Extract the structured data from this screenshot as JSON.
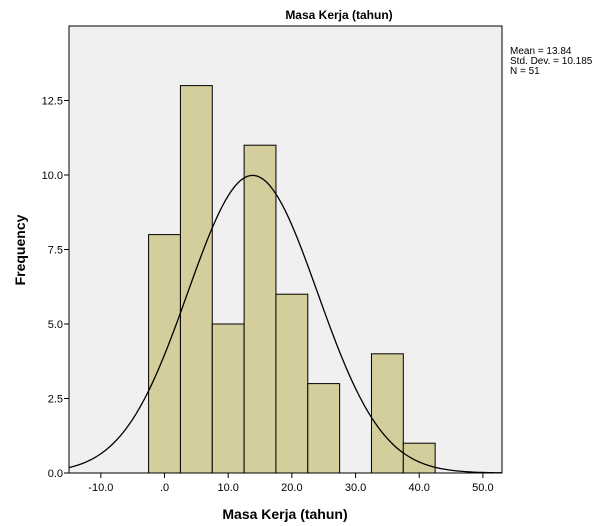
{
  "chart_data": {
    "type": "bar",
    "subtype": "histogram",
    "title": "Masa Kerja (tahun)",
    "xlabel": "Masa Kerja (tahun)",
    "ylabel": "Frequency",
    "bin_width": 5,
    "bins": [
      {
        "start": -2.5,
        "end": 2.5,
        "value": 8
      },
      {
        "start": 2.5,
        "end": 7.5,
        "value": 13
      },
      {
        "start": 7.5,
        "end": 12.5,
        "value": 5
      },
      {
        "start": 12.5,
        "end": 17.5,
        "value": 11
      },
      {
        "start": 17.5,
        "end": 22.5,
        "value": 6
      },
      {
        "start": 22.5,
        "end": 27.5,
        "value": 3
      },
      {
        "start": 27.5,
        "end": 32.5,
        "value": 0
      },
      {
        "start": 32.5,
        "end": 37.5,
        "value": 4
      },
      {
        "start": 37.5,
        "end": 42.5,
        "value": 1
      }
    ],
    "xlim": [
      -15,
      53
    ],
    "ylim": [
      0,
      15
    ],
    "x_ticks": [
      -10,
      0,
      10,
      20,
      30,
      40,
      50
    ],
    "x_tick_labels": [
      "-10.0",
      ".0",
      "10.0",
      "20.0",
      "30.0",
      "40.0",
      "50.0"
    ],
    "y_ticks": [
      0,
      2.5,
      5,
      7.5,
      10,
      12.5
    ],
    "y_tick_labels": [
      "0.0",
      "2.5",
      "5.0",
      "7.5",
      "10.0",
      "12.5"
    ],
    "normal_curve": {
      "mean": 13.84,
      "std": 10.185,
      "n": 51
    },
    "stats": {
      "mean": "Mean = 13.84",
      "std": "Std. Dev. = 10.185",
      "n": "N = 51"
    },
    "grid": false,
    "colors": {
      "plot_background": "#f0f0f0",
      "bar_fill": "#d3ce9b",
      "bar_stroke": "#000000",
      "curve": "#000000"
    }
  }
}
